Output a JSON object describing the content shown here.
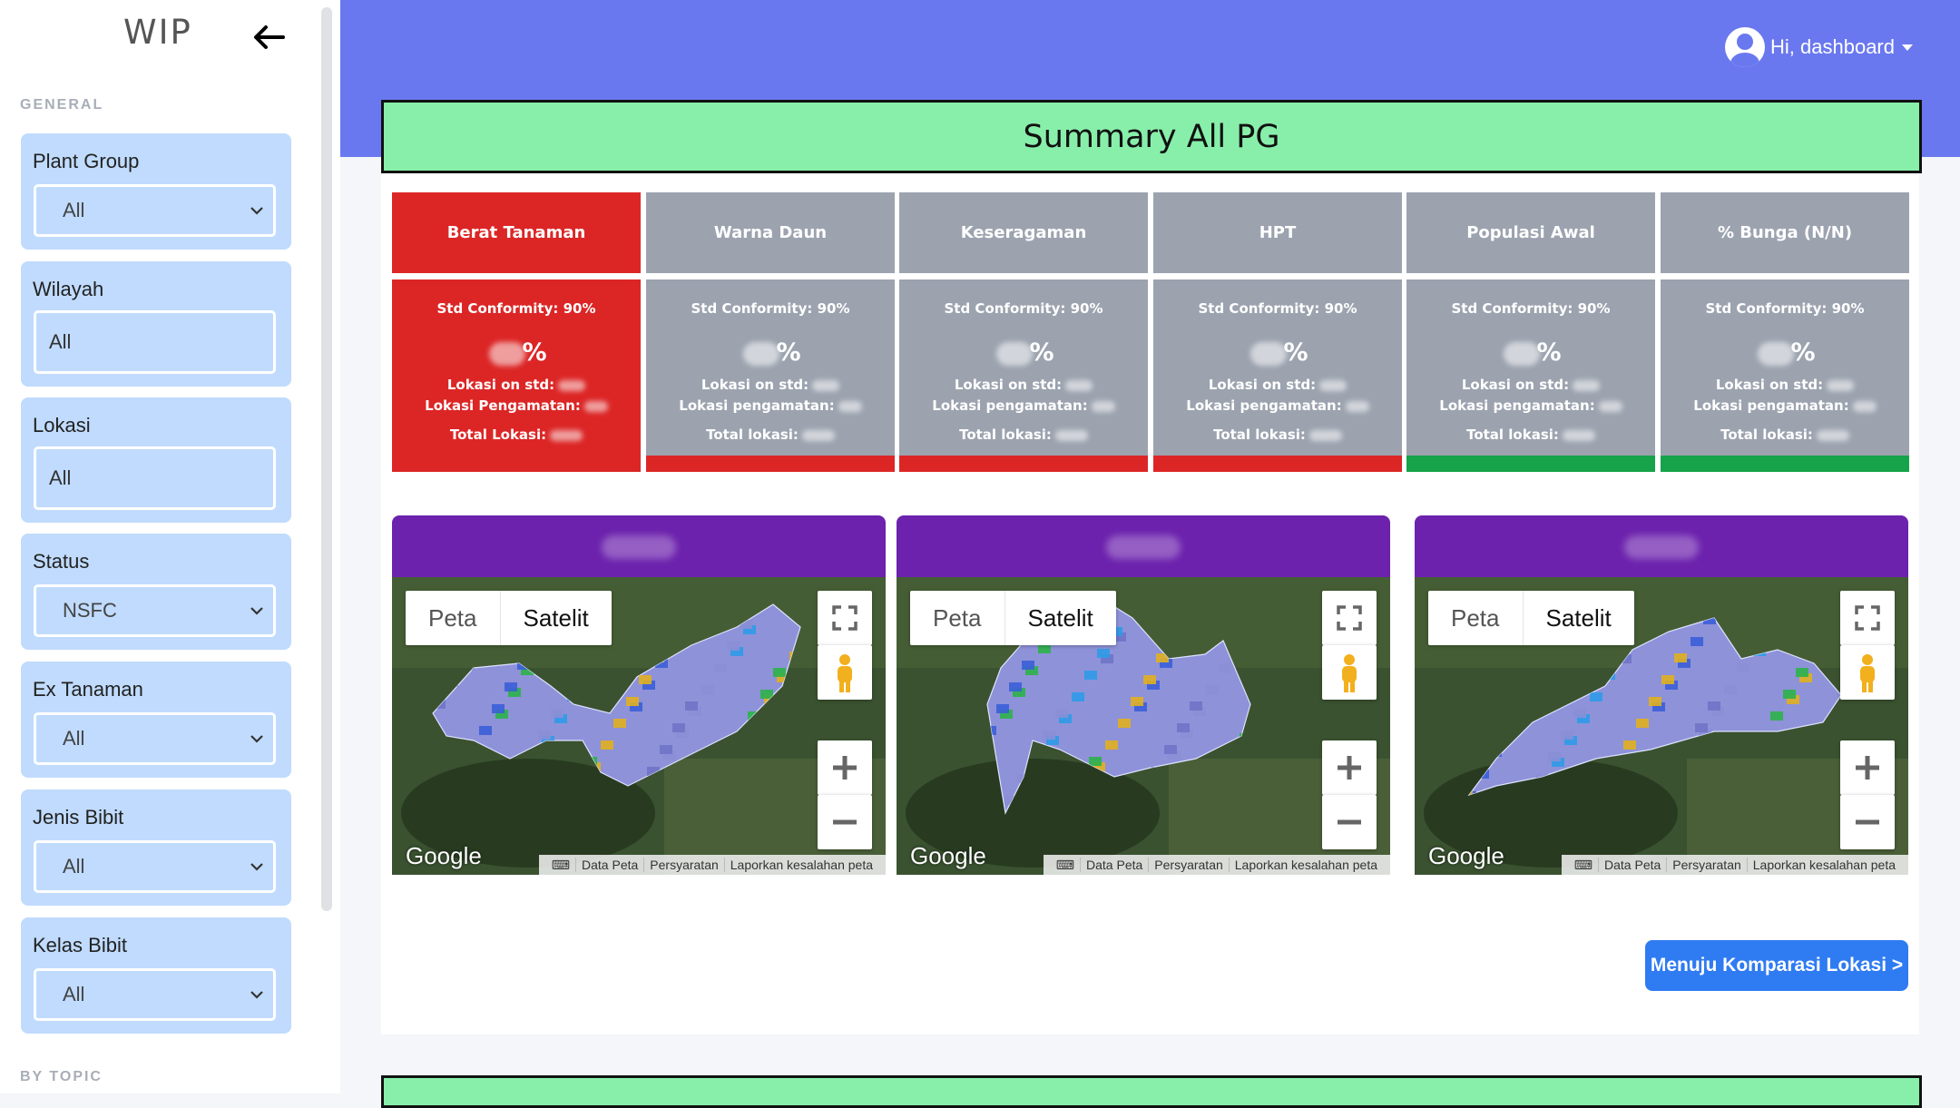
{
  "sidebar": {
    "brand": "WIP",
    "back_icon": "arrow-left-icon",
    "general_label": "GENERAL",
    "bytopic_label": "BY TOPIC",
    "filters": [
      {
        "label": "Plant Group",
        "value": "All",
        "type": "select"
      },
      {
        "label": "Wilayah",
        "value": "All",
        "type": "input"
      },
      {
        "label": "Lokasi",
        "value": "All",
        "type": "input"
      },
      {
        "label": "Status",
        "value": "NSFC",
        "type": "select"
      },
      {
        "label": "Ex Tanaman",
        "value": "All",
        "type": "select"
      },
      {
        "label": "Jenis Bibit",
        "value": "All",
        "type": "select"
      },
      {
        "label": "Kelas Bibit",
        "value": "All",
        "type": "select"
      }
    ]
  },
  "header": {
    "user_greeting": "Hi, dashboard",
    "user_icon": "user-avatar-icon"
  },
  "summary": {
    "title": "Summary All PG",
    "kpis": [
      {
        "name": "Berat Tanaman",
        "std": "Std Conformity: 90%",
        "pct_suffix": "%",
        "on_std": "Lokasi on std:",
        "pengamatan": "Lokasi Pengamatan:",
        "total": "Total Lokasi:",
        "status_color": "#dc2626",
        "card_color": "#dc2626"
      },
      {
        "name": "Warna Daun",
        "std": "Std Conformity: 90%",
        "pct_suffix": "%",
        "on_std": "Lokasi on std:",
        "pengamatan": "Lokasi pengamatan:",
        "total": "Total lokasi:",
        "status_color": "#dc2626",
        "card_color": "#9ca3af"
      },
      {
        "name": "Keseragaman",
        "std": "Std Conformity: 90%",
        "pct_suffix": "%",
        "on_std": "Lokasi on std:",
        "pengamatan": "Lokasi pengamatan:",
        "total": "Total lokasi:",
        "status_color": "#dc2626",
        "card_color": "#9ca3af"
      },
      {
        "name": "HPT",
        "std": "Std Conformity: 90%",
        "pct_suffix": "%",
        "on_std": "Lokasi on std:",
        "pengamatan": "Lokasi pengamatan:",
        "total": "Total lokasi:",
        "status_color": "#dc2626",
        "card_color": "#9ca3af"
      },
      {
        "name": "Populasi Awal",
        "std": "Std Conformity: 90%",
        "pct_suffix": "%",
        "on_std": "Lokasi on std:",
        "pengamatan": "Lokasi pengamatan:",
        "total": "Total lokasi:",
        "status_color": "#16a34a",
        "card_color": "#9ca3af"
      },
      {
        "name": "% Bunga (N/N)",
        "std": "Std Conformity: 90%",
        "pct_suffix": "%",
        "on_std": "Lokasi on std:",
        "pengamatan": "Lokasi pengamatan:",
        "total": "Total lokasi:",
        "status_color": "#16a34a",
        "card_color": "#9ca3af"
      }
    ]
  },
  "maps": {
    "map_type_options": [
      "Peta",
      "Satelit"
    ],
    "selected_map_type": "Satelit",
    "google_label": "Google",
    "credits": [
      "Data Peta",
      "Persyaratan",
      "Laporkan kesalahan peta"
    ],
    "controls": [
      "fullscreen-icon",
      "pegman-icon",
      "zoom-in-icon",
      "zoom-out-icon"
    ],
    "count": 3
  },
  "actions": {
    "compare_label": "Menuju Komparasi Lokasi >"
  },
  "colors": {
    "topbar": "#6a78ef",
    "banner": "#88efaa",
    "filter_card": "#c0dbfd",
    "map_header": "#6c22ad",
    "primary_button": "#2f7bf2",
    "red": "#dc2626",
    "green": "#16a34a",
    "gray": "#9ca3af"
  }
}
